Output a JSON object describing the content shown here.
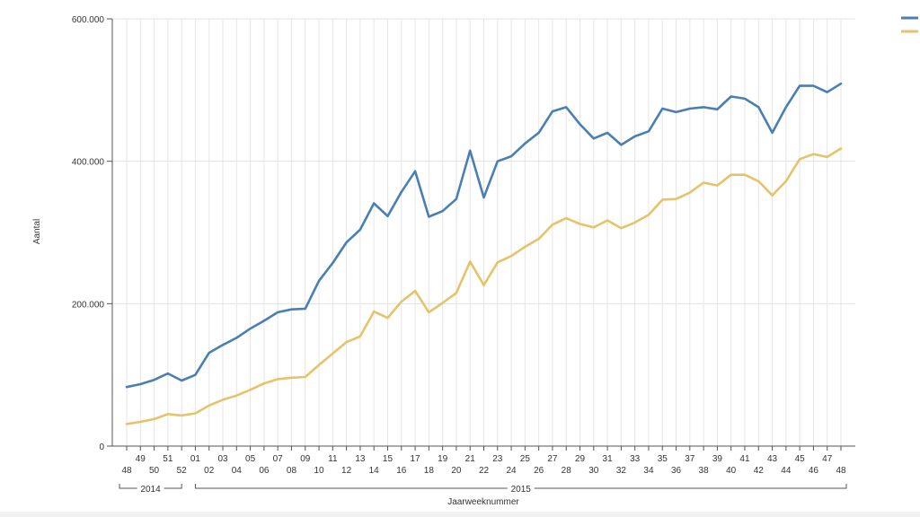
{
  "chart_data": {
    "type": "line",
    "title": "",
    "xlabel": "Jaarweeknummer",
    "ylabel": "Aantal",
    "ylim": [
      0,
      600000
    ],
    "y_ticks": [
      0,
      200000,
      400000,
      600000
    ],
    "y_tick_labels": [
      "0",
      "200.000",
      "400.000",
      "600.000"
    ],
    "grid": true,
    "legend": "top-right",
    "years": [
      {
        "label": "2014",
        "from": "48",
        "to": "52"
      },
      {
        "label": "2015",
        "from": "01",
        "to": "48"
      }
    ],
    "x": [
      "48",
      "49",
      "50",
      "51",
      "52",
      "01",
      "02",
      "03",
      "04",
      "05",
      "06",
      "07",
      "08",
      "09",
      "10",
      "11",
      "12",
      "13",
      "14",
      "15",
      "16",
      "17",
      "18",
      "19",
      "20",
      "21",
      "22",
      "23",
      "24",
      "25",
      "26",
      "27",
      "28",
      "29",
      "30",
      "31",
      "32",
      "33",
      "34",
      "35",
      "36",
      "37",
      "38",
      "39",
      "40",
      "41",
      "42",
      "43",
      "44",
      "45",
      "46",
      "47",
      "48"
    ],
    "series": [
      {
        "color": "#4a7fb5",
        "values": [
          83000,
          87000,
          93000,
          102000,
          92000,
          100000,
          131000,
          142000,
          152000,
          165000,
          176000,
          188000,
          192000,
          193000,
          232000,
          257000,
          286000,
          304000,
          341000,
          323000,
          357000,
          386000,
          322000,
          330000,
          347000,
          415000,
          349000,
          400000,
          407000,
          425000,
          440000,
          470000,
          476000,
          452000,
          432000,
          440000,
          423000,
          435000,
          442000,
          474000,
          469000,
          474000,
          476000,
          473000,
          491000,
          488000,
          476000,
          440000,
          476000,
          506000,
          506000,
          497000,
          509000
        ]
      },
      {
        "color": "#e6c36a",
        "values": [
          31000,
          34000,
          38000,
          45000,
          43000,
          46000,
          57000,
          65000,
          71000,
          79000,
          88000,
          94000,
          96000,
          97000,
          114000,
          130000,
          146000,
          154000,
          189000,
          180000,
          203000,
          218000,
          188000,
          201000,
          215000,
          259000,
          226000,
          258000,
          267000,
          280000,
          291000,
          311000,
          320000,
          312000,
          307000,
          317000,
          306000,
          314000,
          325000,
          346000,
          347000,
          356000,
          370000,
          366000,
          381000,
          381000,
          372000,
          352000,
          372000,
          403000,
          410000,
          406000,
          418000
        ]
      }
    ]
  }
}
